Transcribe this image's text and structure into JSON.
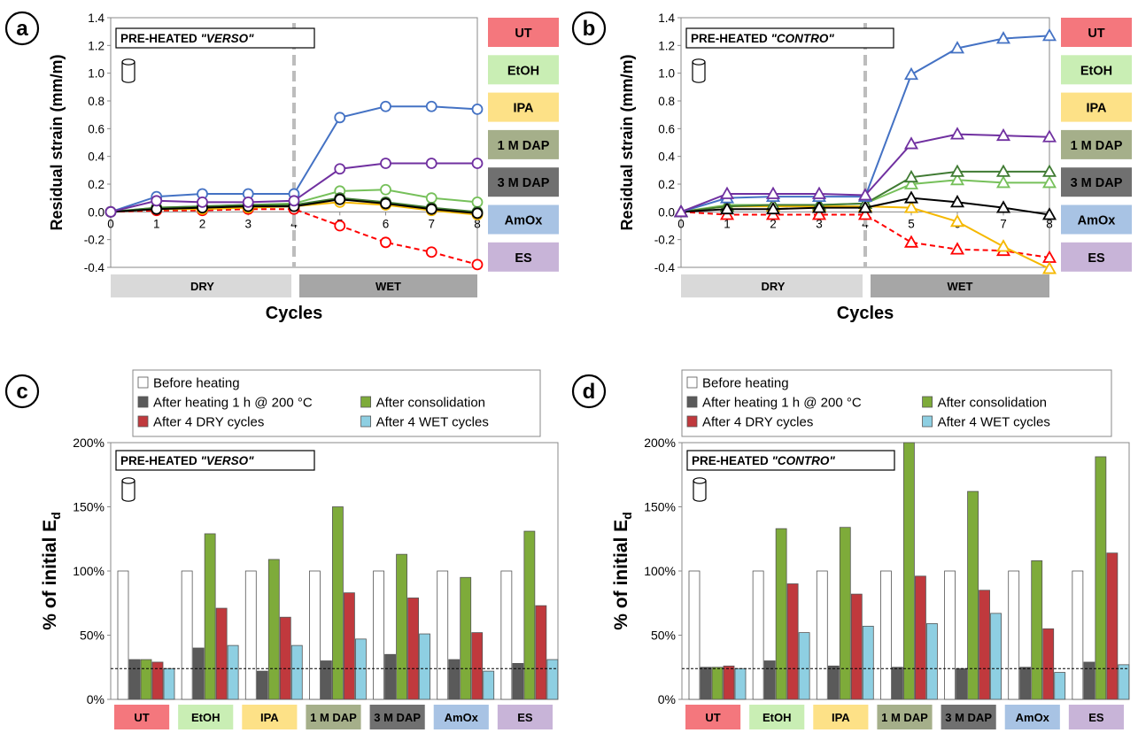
{
  "common": {
    "treatments": [
      "UT",
      "EtOH",
      "IPA",
      "1 M DAP",
      "3 M DAP",
      "AmOx",
      "ES"
    ],
    "colors": {
      "UT": {
        "line": "#ff0000",
        "fill": "#f4777d"
      },
      "EtOH": {
        "line": "#76c05a",
        "fill": "#c9eeb4"
      },
      "IPA": {
        "line": "#f5b800",
        "fill": "#fde187"
      },
      "1 M DAP": {
        "line": "#3f7a32",
        "fill": "#a5af8a"
      },
      "3 M DAP": {
        "line": "#000000",
        "fill": "#707070"
      },
      "AmOx": {
        "line": "#4472c4",
        "fill": "#a8c3e4"
      },
      "ES": {
        "line": "#7030a0",
        "fill": "#c8b4d8"
      }
    },
    "bar_series": [
      "Before heating",
      "After heating 1 h @ 200 °C",
      "After consolidation",
      "After 4 DRY cycles",
      "After 4 WET cycles"
    ],
    "bar_colors": [
      "#ffffff",
      "#5a5a5a",
      "#7eab3a",
      "#c0393d",
      "#8ecfe2"
    ],
    "dry_label": "DRY",
    "wet_label": "WET"
  },
  "chart_data": [
    {
      "panel": "a",
      "type": "line",
      "title": "PRE-HEATED \"VERSO\"",
      "title_plain": "PRE-HEATED ",
      "title_italic": "\"VERSO\"",
      "xlabel": "Cycles",
      "ylabel": "Residual strain (mm/m)",
      "x": [
        0,
        1,
        2,
        3,
        4,
        5,
        6,
        7,
        8
      ],
      "xlim": [
        0,
        8
      ],
      "ylim": [
        -0.4,
        1.4
      ],
      "yticks": [
        "-0.4",
        "-0.2",
        "0.0",
        "0.2",
        "0.4",
        "0.6",
        "0.8",
        "1.0",
        "1.2",
        "1.4"
      ],
      "marker": "circle",
      "series": [
        {
          "name": "UT",
          "values": [
            0,
            0.01,
            0.01,
            0.02,
            0.02,
            -0.1,
            -0.22,
            -0.29,
            -0.38
          ]
        },
        {
          "name": "EtOH",
          "values": [
            0,
            0.03,
            0.04,
            0.05,
            0.06,
            0.15,
            0.16,
            0.1,
            0.07
          ]
        },
        {
          "name": "IPA",
          "values": [
            0,
            0.02,
            0.02,
            0.03,
            0.04,
            0.07,
            0.05,
            0.01,
            -0.02
          ]
        },
        {
          "name": "1 M DAP",
          "values": [
            0,
            0.03,
            0.04,
            0.05,
            0.05,
            0.1,
            0.07,
            0.03,
            0.0
          ]
        },
        {
          "name": "3 M DAP",
          "values": [
            0,
            0.02,
            0.03,
            0.04,
            0.04,
            0.09,
            0.06,
            0.02,
            -0.01
          ]
        },
        {
          "name": "AmOx",
          "values": [
            0,
            0.11,
            0.13,
            0.13,
            0.13,
            0.68,
            0.76,
            0.76,
            0.74
          ]
        },
        {
          "name": "ES",
          "values": [
            0,
            0.08,
            0.07,
            0.07,
            0.08,
            0.31,
            0.35,
            0.35,
            0.35
          ]
        }
      ]
    },
    {
      "panel": "b",
      "type": "line",
      "title": "PRE-HEATED \"CONTRO\"",
      "title_plain": "PRE-HEATED ",
      "title_italic": "\"CONTRO\"",
      "xlabel": "Cycles",
      "ylabel": "Residual strain (mm/m)",
      "x": [
        0,
        1,
        2,
        3,
        4,
        5,
        6,
        7,
        8
      ],
      "xlim": [
        0,
        8
      ],
      "ylim": [
        -0.4,
        1.4
      ],
      "yticks": [
        "-0.4",
        "-0.2",
        "0.0",
        "0.2",
        "0.4",
        "0.6",
        "0.8",
        "1.0",
        "1.2",
        "1.4"
      ],
      "marker": "triangle",
      "series": [
        {
          "name": "UT",
          "values": [
            0,
            -0.02,
            -0.02,
            -0.02,
            -0.02,
            -0.22,
            -0.27,
            -0.28,
            -0.33
          ]
        },
        {
          "name": "EtOH",
          "values": [
            0,
            0.05,
            0.05,
            0.05,
            0.06,
            0.2,
            0.23,
            0.21,
            0.21
          ]
        },
        {
          "name": "IPA",
          "values": [
            0,
            0.04,
            0.04,
            0.04,
            0.04,
            0.03,
            -0.07,
            -0.25,
            -0.41
          ]
        },
        {
          "name": "1 M DAP",
          "values": [
            0,
            0.04,
            0.05,
            0.05,
            0.06,
            0.25,
            0.29,
            0.29,
            0.29
          ]
        },
        {
          "name": "3 M DAP",
          "values": [
            0,
            0.02,
            0.02,
            0.03,
            0.03,
            0.1,
            0.07,
            0.03,
            -0.02
          ]
        },
        {
          "name": "AmOx",
          "values": [
            0,
            0.1,
            0.11,
            0.11,
            0.11,
            0.99,
            1.18,
            1.25,
            1.27
          ]
        },
        {
          "name": "ES",
          "values": [
            0,
            0.13,
            0.13,
            0.13,
            0.12,
            0.49,
            0.56,
            0.55,
            0.54
          ]
        }
      ]
    },
    {
      "panel": "c",
      "type": "bar",
      "title": "PRE-HEATED \"VERSO\"",
      "title_plain": "PRE-HEATED ",
      "title_italic": "\"VERSO\"",
      "ylabel": "% of initial E",
      "ylabel_sub": "d",
      "categories": [
        "UT",
        "EtOH",
        "IPA",
        "1 M DAP",
        "3 M DAP",
        "AmOx",
        "ES"
      ],
      "ylim": [
        0,
        200
      ],
      "yticks": [
        "0%",
        "50%",
        "100%",
        "150%",
        "200%"
      ],
      "reference_line": 24,
      "series": [
        {
          "name": "Before heating",
          "values": [
            100,
            100,
            100,
            100,
            100,
            100,
            100
          ]
        },
        {
          "name": "After heating 1 h @ 200 °C",
          "values": [
            31,
            40,
            22,
            30,
            35,
            31,
            28
          ]
        },
        {
          "name": "After consolidation",
          "values": [
            31,
            129,
            109,
            150,
            113,
            95,
            131
          ]
        },
        {
          "name": "After 4 DRY cycles",
          "values": [
            29,
            71,
            64,
            83,
            79,
            52,
            73
          ]
        },
        {
          "name": "After 4 WET cycles",
          "values": [
            24,
            42,
            42,
            47,
            51,
            22,
            31
          ]
        }
      ]
    },
    {
      "panel": "d",
      "type": "bar",
      "title": "PRE-HEATED \"CONTRO\"",
      "title_plain": "PRE-HEATED ",
      "title_italic": "\"CONTRO\"",
      "ylabel": "% of initial E",
      "ylabel_sub": "d",
      "categories": [
        "UT",
        "EtOH",
        "IPA",
        "1 M DAP",
        "3 M DAP",
        "AmOx",
        "ES"
      ],
      "ylim": [
        0,
        200
      ],
      "yticks": [
        "0%",
        "50%",
        "100%",
        "150%",
        "200%"
      ],
      "reference_line": 24,
      "series": [
        {
          "name": "Before heating",
          "values": [
            100,
            100,
            100,
            100,
            100,
            100,
            100
          ]
        },
        {
          "name": "After heating 1 h @ 200 °C",
          "values": [
            25,
            30,
            26,
            25,
            24,
            25,
            29
          ]
        },
        {
          "name": "After consolidation",
          "values": [
            25,
            133,
            134,
            200,
            162,
            108,
            189
          ]
        },
        {
          "name": "After 4 DRY cycles",
          "values": [
            26,
            90,
            82,
            96,
            85,
            55,
            114
          ]
        },
        {
          "name": "After 4 WET cycles",
          "values": [
            24,
            52,
            57,
            59,
            67,
            21,
            27
          ]
        }
      ]
    }
  ]
}
